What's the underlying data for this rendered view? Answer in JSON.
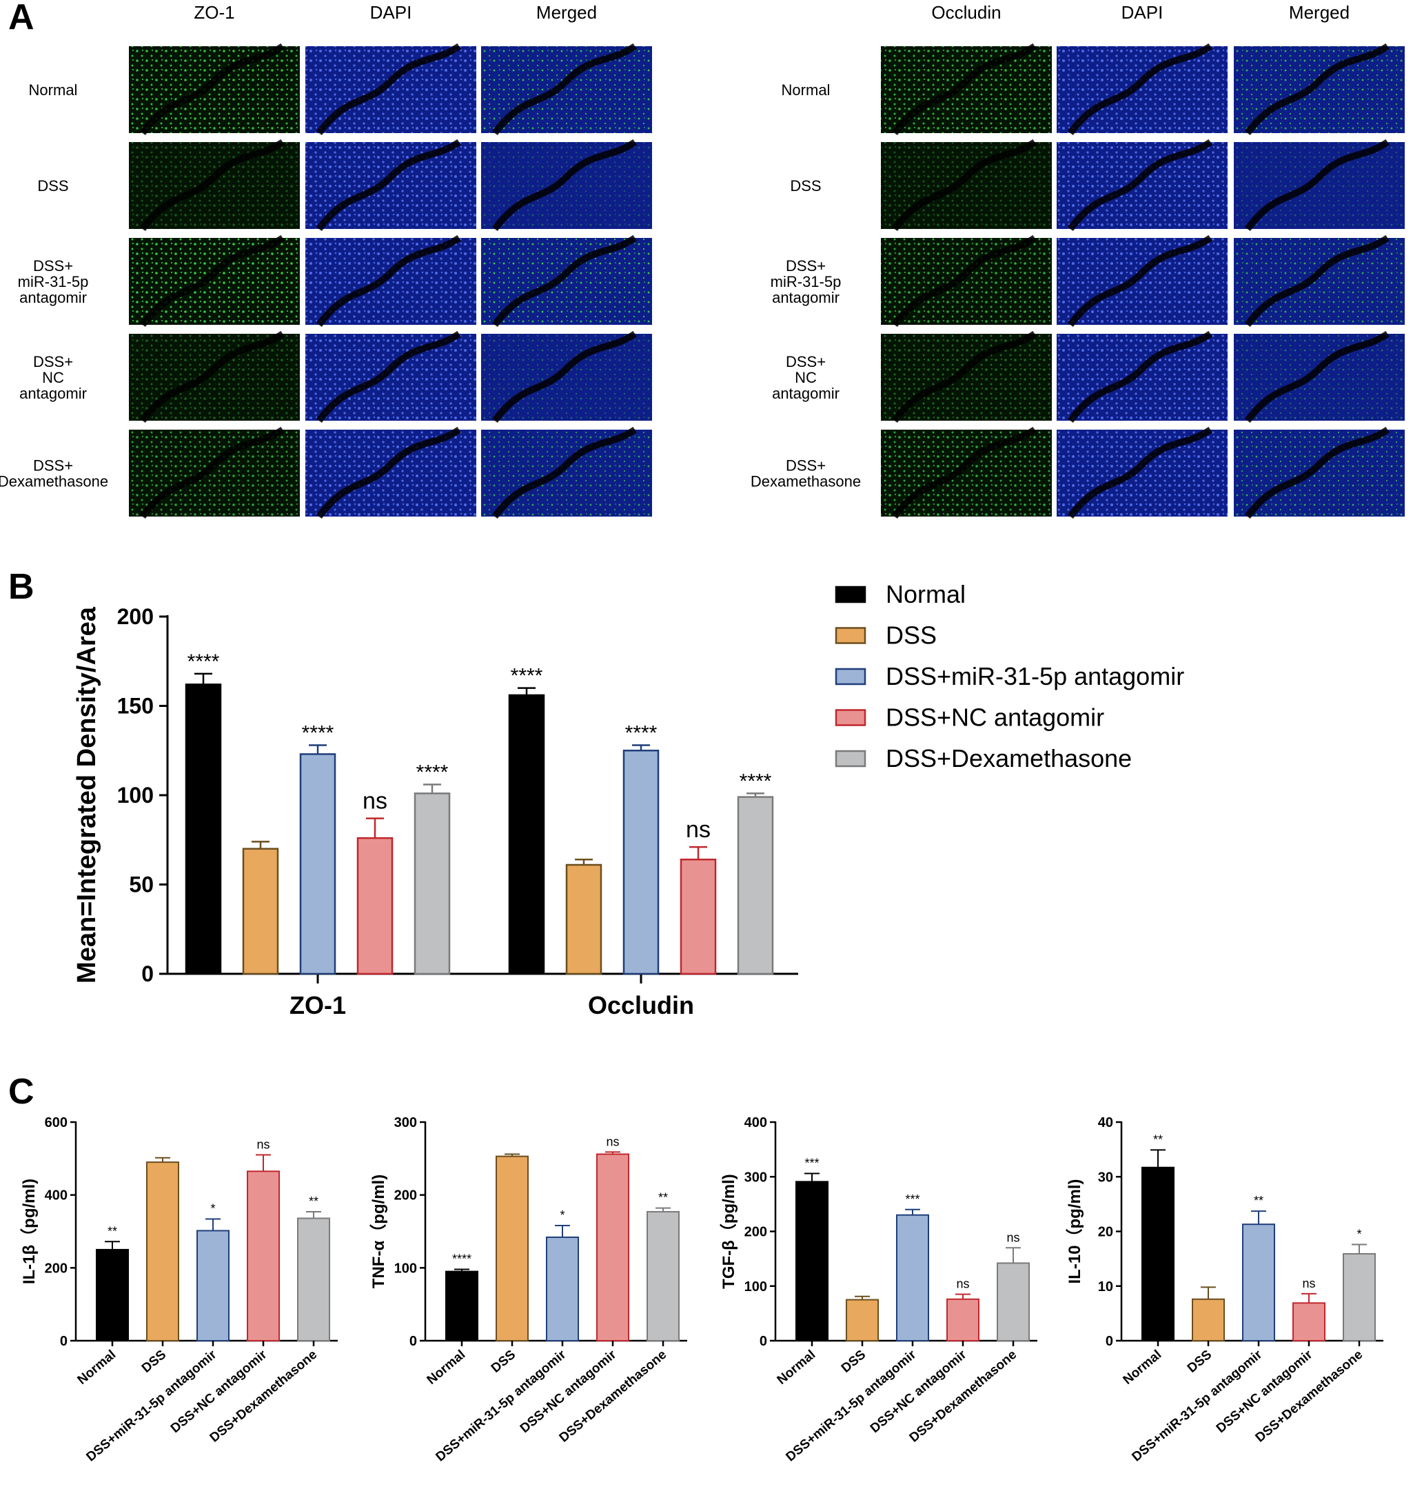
{
  "panels": {
    "A": "A",
    "B": "B",
    "C": "C"
  },
  "panel_a": {
    "left": {
      "columns": [
        "ZO-1",
        "DAPI",
        "Merged"
      ],
      "rows": [
        [
          "Normal"
        ],
        [
          "DSS"
        ],
        [
          "DSS+",
          "miR-31-5p",
          "antagomir"
        ],
        [
          "DSS+",
          "NC",
          "antagomir"
        ],
        [
          "DSS+",
          "Dexamethasone"
        ]
      ],
      "green_intensity": [
        0.85,
        0.35,
        0.9,
        0.4,
        0.7
      ]
    },
    "right": {
      "columns": [
        "Occludin",
        "DAPI",
        "Merged"
      ],
      "rows": [
        [
          "Normal"
        ],
        [
          "DSS"
        ],
        [
          "DSS+",
          "miR-31-5p",
          "antagomir"
        ],
        [
          "DSS+",
          "NC",
          "antagomir"
        ],
        [
          "DSS+",
          "Dexamethasone"
        ]
      ],
      "green_intensity": [
        0.8,
        0.35,
        0.75,
        0.45,
        0.75
      ]
    }
  },
  "colors": {
    "Normal": "#000000",
    "DSS": "#e8a85d",
    "DSS+miR-31-5p antagomir": "#9db4d6",
    "DSS+NC antagomir": "#e89391",
    "DSS+Dexamethasone": "#bfc0c2",
    "outline_Normal": "#000000",
    "outline_DSS": "#6b4e1e",
    "outline_DSS+miR-31-5p antagomir": "#1f3f7a",
    "outline_DSS+NC antagomir": "#c1272d",
    "outline_DSS+Dexamethasone": "#7a7a7a"
  },
  "chart_data": [
    {
      "panel": "B",
      "type": "bar",
      "ylabel": "Mean=Integrated Density/Area",
      "ylim": [
        0,
        200
      ],
      "yticks": [
        0,
        50,
        100,
        150,
        200
      ],
      "categories": [
        "ZO-1",
        "Occludin"
      ],
      "series": [
        {
          "name": "Normal",
          "values": [
            162,
            156
          ],
          "errors": [
            6,
            4
          ],
          "sig": [
            "****",
            "****"
          ]
        },
        {
          "name": "DSS",
          "values": [
            70,
            61
          ],
          "errors": [
            4,
            3
          ],
          "sig": [
            "",
            ""
          ]
        },
        {
          "name": "DSS+miR-31-5p antagomir",
          "values": [
            123,
            125
          ],
          "errors": [
            5,
            3
          ],
          "sig": [
            "****",
            "****"
          ]
        },
        {
          "name": "DSS+NC antagomir",
          "values": [
            76,
            64
          ],
          "errors": [
            11,
            7
          ],
          "sig": [
            "ns",
            "ns"
          ]
        },
        {
          "name": "DSS+Dexamethasone",
          "values": [
            101,
            99
          ],
          "errors": [
            5,
            2
          ],
          "sig": [
            "****",
            "****"
          ]
        }
      ],
      "legend": "right"
    },
    {
      "panel": "C",
      "type": "bar",
      "ylabel": "IL-1β（pg/ml)",
      "ylim": [
        0,
        600
      ],
      "yticks": [
        0,
        200,
        400,
        600
      ],
      "categories": [
        "Normal",
        "DSS",
        "DSS+miR-31-5p antagomir",
        "DSS+NC antagomir",
        "DSS+Dexamethasone"
      ],
      "values": [
        250,
        490,
        302,
        465,
        336
      ],
      "errors": [
        22,
        12,
        32,
        45,
        18
      ],
      "sig": [
        "**",
        "",
        "*",
        "ns",
        "**"
      ]
    },
    {
      "panel": "C",
      "type": "bar",
      "ylabel": "TNF-α（pg/ml)",
      "ylim": [
        0,
        300
      ],
      "yticks": [
        0,
        100,
        200,
        300
      ],
      "categories": [
        "Normal",
        "DSS",
        "DSS+miR-31-5p antagomir",
        "DSS+NC antagomir",
        "DSS+Dexamethasone"
      ],
      "values": [
        95,
        253,
        142,
        256,
        177
      ],
      "errors": [
        3,
        3,
        16,
        3,
        5
      ],
      "sig": [
        "****",
        "",
        "*",
        "ns",
        "**"
      ]
    },
    {
      "panel": "C",
      "type": "bar",
      "ylabel": "TGF-β（pg/ml)",
      "ylim": [
        0,
        400
      ],
      "yticks": [
        0,
        100,
        200,
        300,
        400
      ],
      "categories": [
        "Normal",
        "DSS",
        "DSS+miR-31-5p antagomir",
        "DSS+NC antagomir",
        "DSS+Dexamethasone"
      ],
      "values": [
        291,
        75,
        230,
        76,
        142
      ],
      "errors": [
        15,
        6,
        10,
        9,
        28
      ],
      "sig": [
        "***",
        "",
        "***",
        "ns",
        "ns"
      ]
    },
    {
      "panel": "C",
      "type": "bar",
      "ylabel": "IL-10（pg/ml)",
      "ylim": [
        0,
        40
      ],
      "yticks": [
        0,
        10,
        20,
        30,
        40
      ],
      "categories": [
        "Normal",
        "DSS",
        "DSS+miR-31-5p antagomir",
        "DSS+NC antagomir",
        "DSS+Dexamethasone"
      ],
      "values": [
        31.7,
        7.6,
        21.3,
        6.9,
        15.9
      ],
      "errors": [
        3.2,
        2.2,
        2.4,
        1.7,
        1.7
      ],
      "sig": [
        "**",
        "",
        "**",
        "ns",
        "*"
      ]
    }
  ]
}
